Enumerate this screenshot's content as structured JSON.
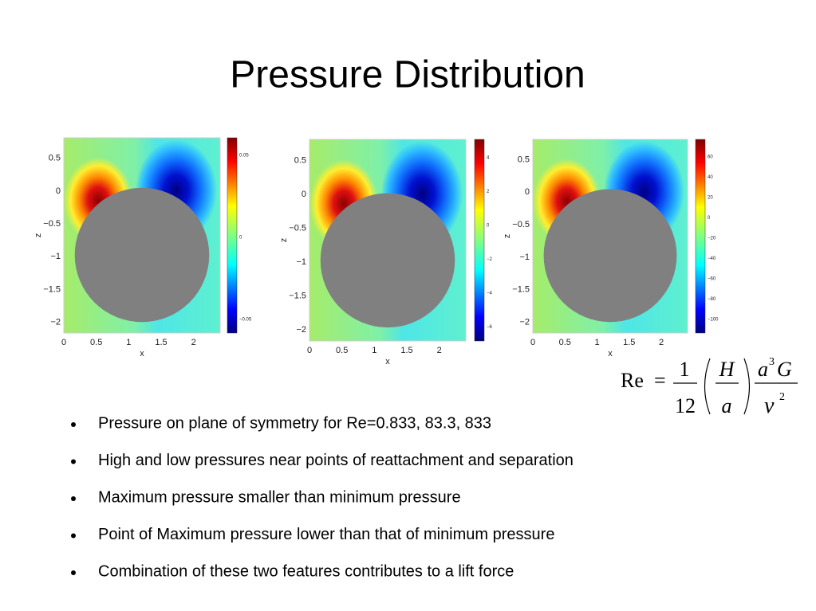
{
  "title": "Pressure Distribution",
  "plots": [
    {
      "xticks": [
        "0",
        "0.5",
        "1",
        "1.5",
        "2"
      ],
      "zticks": [
        "0.5",
        "0",
        "−0.5",
        "−1",
        "−1.5",
        "−2"
      ],
      "xlabel": "x",
      "zlabel": "z",
      "colorbar_ticks": [
        "0.05",
        "0",
        "−0.05"
      ]
    },
    {
      "xticks": [
        "0",
        "0.5",
        "1",
        "1.5",
        "2"
      ],
      "zticks": [
        "0.5",
        "0",
        "−0.5",
        "−1",
        "−1.5",
        "−2"
      ],
      "xlabel": "x",
      "zlabel": "z",
      "colorbar_ticks": [
        "4",
        "2",
        "0",
        "−2",
        "−4",
        "−6"
      ]
    },
    {
      "xticks": [
        "0",
        "0.5",
        "1",
        "1.5",
        "2"
      ],
      "zticks": [
        "0.5",
        "0",
        "−0.5",
        "−1",
        "−1.5",
        "−2"
      ],
      "xlabel": "x",
      "zlabel": "z",
      "colorbar_ticks": [
        "60",
        "40",
        "20",
        "0",
        "−20",
        "−40",
        "−60",
        "−80",
        "−100"
      ]
    }
  ],
  "formula": {
    "lhs": "Re",
    "eq": "=",
    "n1": "1",
    "d1": "12",
    "n2": "H",
    "d2": "a",
    "n3a": "a",
    "n3exp": "3",
    "n3b": "G",
    "d3": "ν",
    "d3exp": "2"
  },
  "bullets": [
    "Pressure on plane of symmetry for Re=0.833, 83.3, 833",
    "High and low pressures near points of reattachment and separation",
    "Maximum pressure smaller than minimum pressure",
    "Point of Maximum pressure lower than that of minimum pressure",
    "Combination of these two features contributes to a lift force"
  ]
}
